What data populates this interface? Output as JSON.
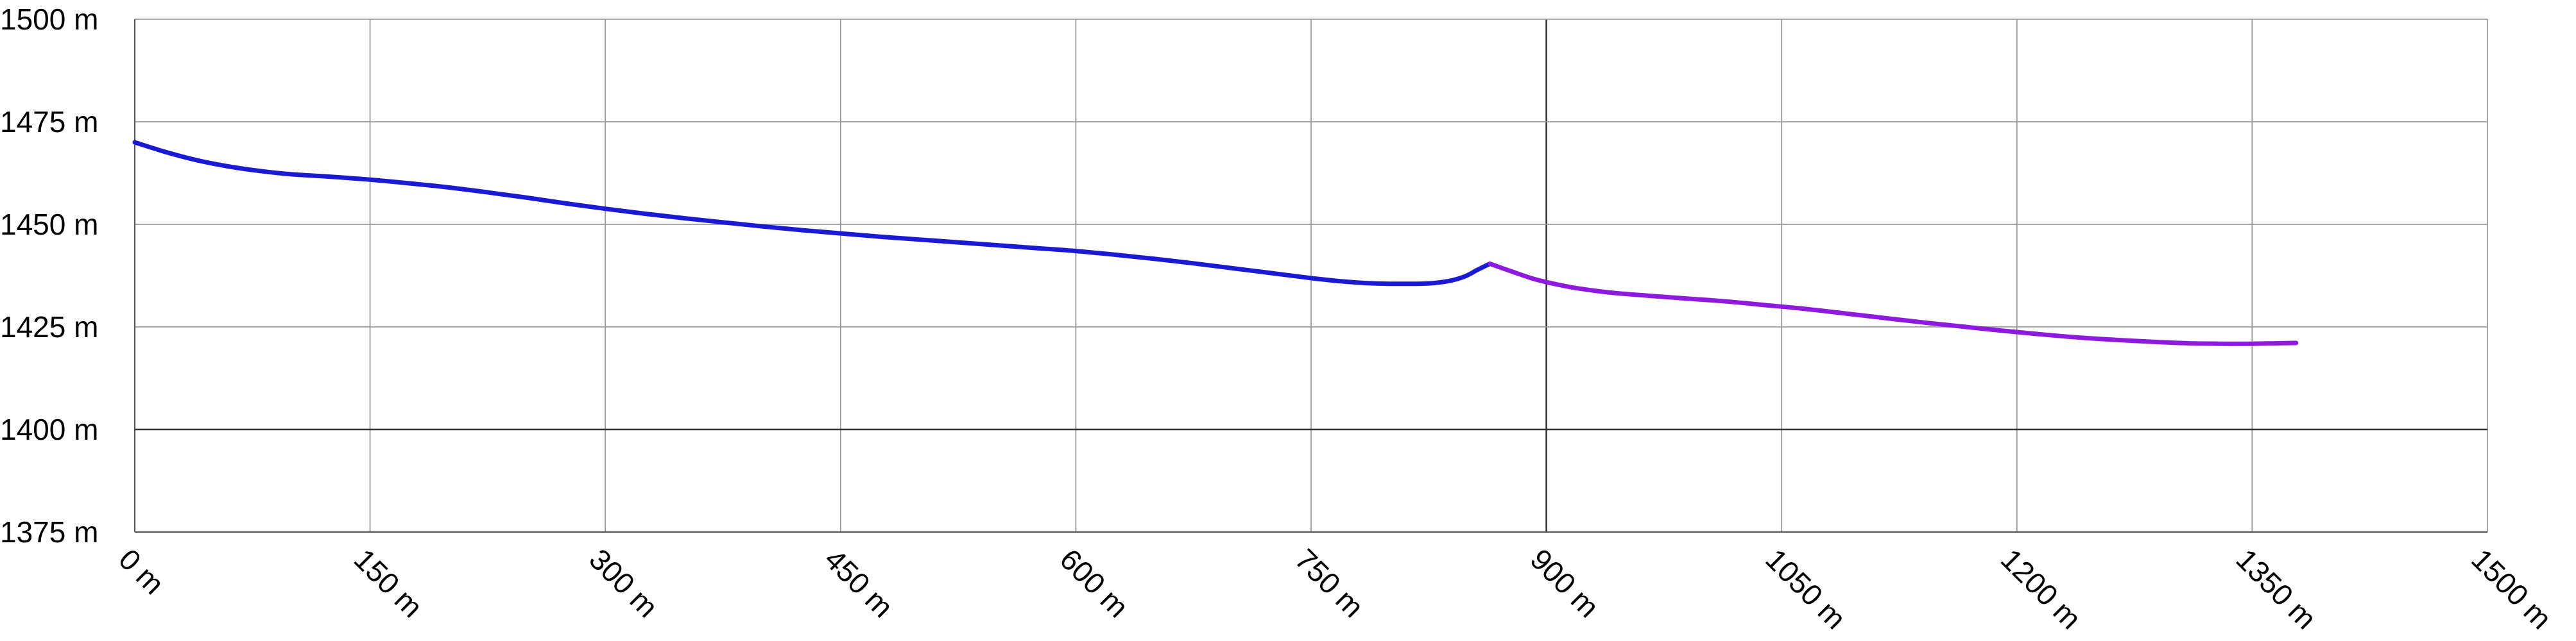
{
  "chart_data": {
    "type": "line",
    "title": "",
    "xlabel": "",
    "ylabel": "",
    "x_unit": "m",
    "y_unit": "m",
    "xlim": [
      0,
      1500
    ],
    "ylim": [
      1375,
      1500
    ],
    "x_ticks": [
      0,
      150,
      300,
      450,
      600,
      750,
      900,
      1050,
      1200,
      1350,
      1500
    ],
    "y_ticks": [
      1375,
      1400,
      1425,
      1450,
      1475,
      1500
    ],
    "x_tick_labels": [
      "0 m",
      "150 m",
      "300 m",
      "450 m",
      "600 m",
      "750 m",
      "900 m",
      "1050 m",
      "1200 m",
      "1350 m",
      "1500 m"
    ],
    "y_tick_labels": [
      "1375 m",
      "1400 m",
      "1425 m",
      "1450 m",
      "1475 m",
      "1500 m"
    ],
    "grid": true,
    "emphasized_lines": {
      "x": 900,
      "y": 1400
    },
    "series": [
      {
        "color": "#1a1ad6",
        "points": [
          [
            0,
            1470
          ],
          [
            20,
            1467.6
          ],
          [
            40,
            1465.6
          ],
          [
            60,
            1464.1
          ],
          [
            80,
            1463
          ],
          [
            100,
            1462.2
          ],
          [
            125,
            1461.6
          ],
          [
            150,
            1460.9
          ],
          [
            175,
            1460
          ],
          [
            200,
            1459
          ],
          [
            225,
            1457.8
          ],
          [
            250,
            1456.5
          ],
          [
            275,
            1455.1
          ],
          [
            300,
            1453.8
          ],
          [
            325,
            1452.6
          ],
          [
            350,
            1451.5
          ],
          [
            375,
            1450.5
          ],
          [
            400,
            1449.5
          ],
          [
            425,
            1448.6
          ],
          [
            450,
            1447.8
          ],
          [
            475,
            1447
          ],
          [
            500,
            1446.3
          ],
          [
            525,
            1445.6
          ],
          [
            550,
            1444.9
          ],
          [
            575,
            1444.2
          ],
          [
            600,
            1443.5
          ],
          [
            625,
            1442.6
          ],
          [
            650,
            1441.6
          ],
          [
            675,
            1440.5
          ],
          [
            700,
            1439.3
          ],
          [
            725,
            1438.1
          ],
          [
            750,
            1436.9
          ],
          [
            770,
            1436.1
          ],
          [
            790,
            1435.6
          ],
          [
            810,
            1435.5
          ],
          [
            825,
            1435.6
          ],
          [
            838,
            1436.2
          ],
          [
            848,
            1437.3
          ],
          [
            856,
            1438.9
          ],
          [
            864,
            1440.4
          ]
        ]
      },
      {
        "color": "#8e1ae0",
        "points": [
          [
            864,
            1440.4
          ],
          [
            878,
            1438.5
          ],
          [
            892,
            1436.7
          ],
          [
            905,
            1435.5
          ],
          [
            920,
            1434.4
          ],
          [
            940,
            1433.4
          ],
          [
            965,
            1432.6
          ],
          [
            990,
            1431.9
          ],
          [
            1015,
            1431.2
          ],
          [
            1040,
            1430.3
          ],
          [
            1065,
            1429.4
          ],
          [
            1090,
            1428.3
          ],
          [
            1115,
            1427.2
          ],
          [
            1140,
            1426.1
          ],
          [
            1165,
            1425.1
          ],
          [
            1190,
            1424.1
          ],
          [
            1215,
            1423.2
          ],
          [
            1240,
            1422.4
          ],
          [
            1265,
            1421.8
          ],
          [
            1290,
            1421.3
          ],
          [
            1310,
            1421
          ],
          [
            1330,
            1420.9
          ],
          [
            1350,
            1420.9
          ],
          [
            1365,
            1421
          ],
          [
            1378,
            1421.1
          ]
        ]
      }
    ]
  }
}
